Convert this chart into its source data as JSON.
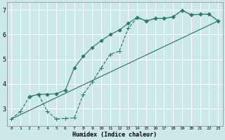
{
  "xlabel": "Humidex (Indice chaleur)",
  "bg_color": "#cce8e8",
  "grid_color": "#b0d0d0",
  "line_color": "#2d7a6a",
  "xlim": [
    -0.5,
    23.5
  ],
  "ylim": [
    2.3,
    7.3
  ],
  "xticks": [
    0,
    1,
    2,
    3,
    4,
    5,
    6,
    7,
    8,
    9,
    10,
    11,
    12,
    13,
    14,
    15,
    16,
    17,
    18,
    19,
    20,
    21,
    22,
    23
  ],
  "yticks": [
    3,
    4,
    5,
    6,
    7
  ],
  "curve1_x": [
    0,
    1,
    2,
    3,
    4,
    5,
    6,
    7,
    8,
    9,
    10,
    11,
    12,
    13,
    14,
    15,
    16,
    17,
    18,
    19,
    20,
    21,
    22,
    23
  ],
  "curve1_y": [
    2.58,
    2.88,
    3.48,
    3.58,
    2.88,
    2.58,
    2.6,
    2.62,
    3.58,
    4.08,
    4.65,
    5.2,
    5.32,
    6.25,
    6.68,
    6.55,
    6.65,
    6.65,
    6.72,
    6.98,
    6.8,
    6.82,
    6.82,
    6.55
  ],
  "curve2_x": [
    2,
    3,
    4,
    5,
    6,
    7,
    8,
    9,
    10,
    11,
    12,
    13,
    14,
    15,
    16,
    17,
    18,
    19,
    20,
    21,
    22,
    23
  ],
  "curve2_y": [
    3.48,
    3.58,
    3.58,
    3.6,
    3.75,
    4.65,
    5.12,
    5.48,
    5.75,
    6.0,
    6.18,
    6.45,
    6.7,
    6.55,
    6.65,
    6.65,
    6.72,
    6.98,
    6.8,
    6.82,
    6.82,
    6.55
  ],
  "curve3_x": [
    0,
    23
  ],
  "curve3_y": [
    2.58,
    6.55
  ]
}
